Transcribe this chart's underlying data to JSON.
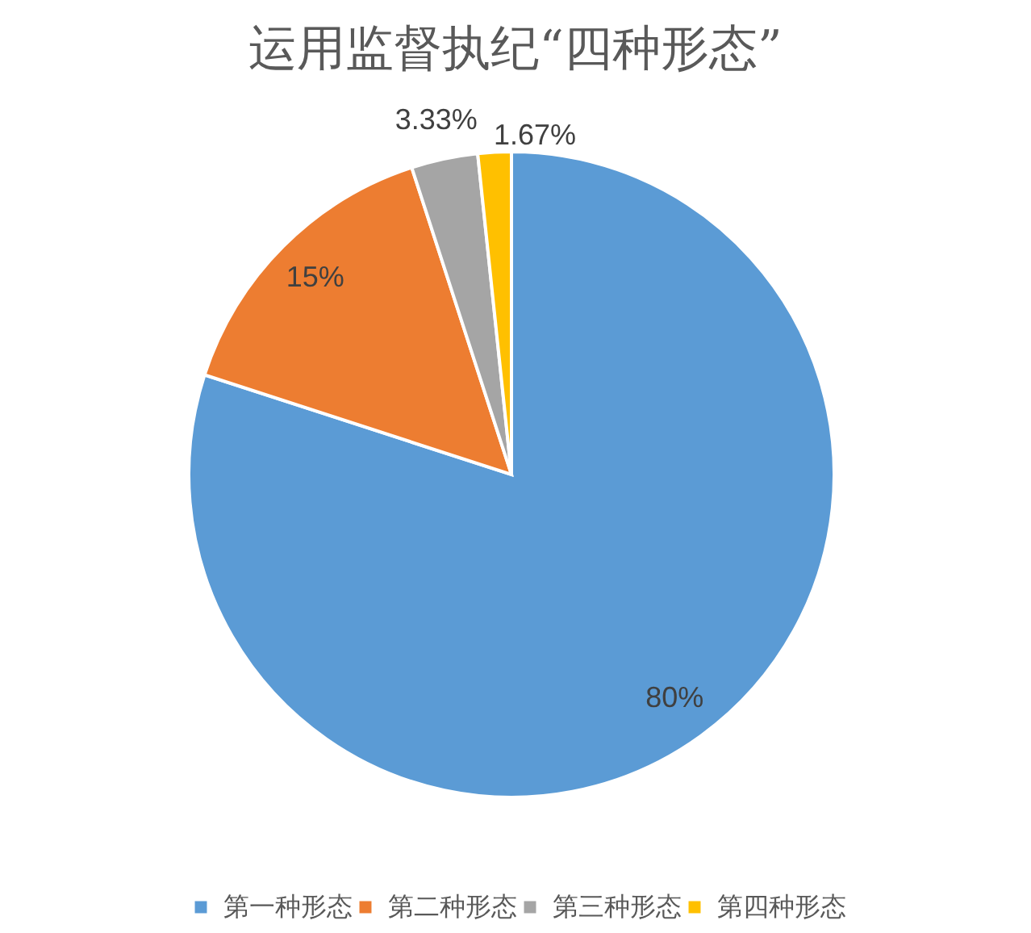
{
  "chart_data": {
    "type": "pie",
    "title": "运用监督执纪“四种形态”",
    "categories": [
      "第一种形态",
      "第二种形态",
      "第三种形态",
      "第四种形态"
    ],
    "values": [
      80,
      15,
      3.33,
      1.67
    ],
    "colors": [
      "#5b9bd5",
      "#ed7d31",
      "#a5a5a5",
      "#ffc000"
    ],
    "value_labels": [
      "80%",
      "15%",
      "3.33%",
      "1.67%"
    ],
    "legend": "bottom"
  }
}
